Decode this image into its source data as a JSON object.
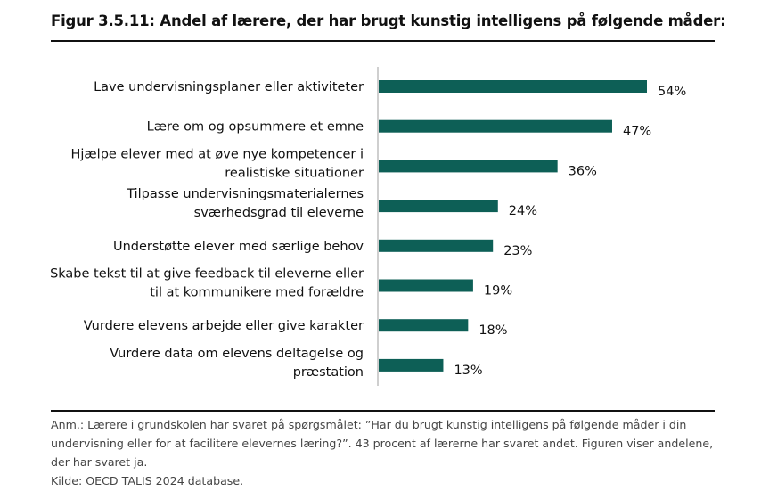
{
  "title": "Figur 3.5.11: Andel af lærere, der har brugt kunstig intelligens på følgende måder:",
  "chart_data": {
    "type": "bar",
    "orientation": "horizontal",
    "categories": [
      [
        "Lave undervisningsplaner eller aktiviteter"
      ],
      [
        "Lære om og opsummere et emne"
      ],
      [
        "Hjælpe elever med at øve nye kompetencer i",
        "realistiske situationer"
      ],
      [
        "Tilpasse undervisningsmaterialernes",
        "sværhedsgrad til eleverne"
      ],
      [
        "Understøtte elever med særlige behov"
      ],
      [
        "Skabe tekst til at give feedback til eleverne eller",
        "til at kommunikere med forældre"
      ],
      [
        "Vurdere elevens arbejde eller give karakter"
      ],
      [
        "Vurdere data om elevens deltagelse og",
        "præstation"
      ]
    ],
    "values": [
      54,
      47,
      36,
      24,
      23,
      19,
      18,
      13
    ],
    "value_labels": [
      "54%",
      "47%",
      "36%",
      "24%",
      "23%",
      "19%",
      "18%",
      "13%"
    ],
    "unit": "%",
    "xlim": [
      0,
      54
    ],
    "grid": false,
    "legend": "none",
    "bar_color": "#0d5f56",
    "axis_color": "#bfbfbf"
  },
  "notes": {
    "anm": "Anm.: Lærere i grundskolen har svaret på spørgsmålet: ”Har du brugt kunstig intelligens på følgende måder i din undervisning eller for at facilitere elevernes læring?”. 43 procent af lærerne har svaret andet. Figuren viser andelene, der har svaret ja.",
    "kilde": "Kilde: OECD TALIS 2024 database."
  }
}
